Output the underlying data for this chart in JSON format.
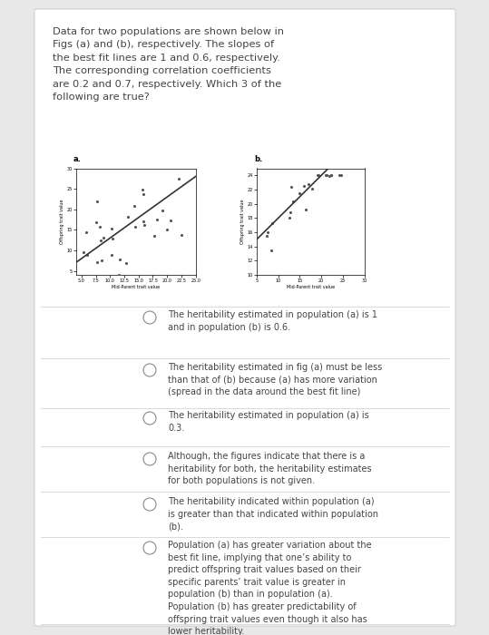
{
  "background_color": "#e8e8e8",
  "panel_color": "#ffffff",
  "question_text": "Data for two populations are shown below in\nFigs (a) and (b), respectively. The slopes of\nthe best fit lines are 1 and 0.6, respectively.\nThe corresponding correlation coefficients\nare 0.2 and 0.7, respectively. Which 3 of the\nfollowing are true?",
  "fig_a_label": "a.",
  "fig_b_label": "b.",
  "fig_a_xlabel": "Mid-Parent trait value",
  "fig_b_xlabel": "Mid-Parent trait value",
  "fig_a_ylabel": "Offspring trait value",
  "fig_b_ylabel": "Offspring trait value",
  "fig_a_slope": 1.0,
  "fig_a_intercept": 3.0,
  "fig_b_slope": 0.6,
  "fig_b_intercept": 12.0,
  "fig_a_xlim": [
    4,
    25
  ],
  "fig_a_ylim": [
    4,
    30
  ],
  "fig_b_xlim": [
    5,
    30
  ],
  "fig_b_ylim": [
    10,
    25
  ],
  "scatter_color": "#555555",
  "line_color": "#333333",
  "text_color": "#444444",
  "divider_color": "#cccccc",
  "circle_color": "#888888",
  "options": [
    "The heritability estimated in population (a) is 1\nand in population (b) is 0.6.",
    "The heritability estimated in fig (a) must be less\nthan that of (b) because (a) has more variation\n(spread in the data around the best fit line)",
    "The heritability estimated in population (a) is\n0.3.",
    "Although, the figures indicate that there is a\nheritability for both, the heritability estimates\nfor both populations is not given.",
    "The heritability indicated within population (a)\nis greater than that indicated within population\n(b).",
    "Population (a) has greater variation about the\nbest fit line, implying that one’s ability to\npredict offspring trait values based on their\nspecific parents’ trait value is greater in\npopulation (b) than in population (a).\nPopulation (b) has greater predictability of\noffspring trait values even though it also has\nlower heritability."
  ]
}
